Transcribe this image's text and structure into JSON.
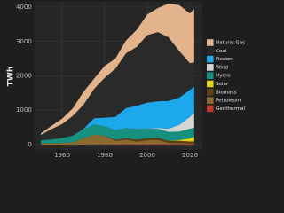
{
  "chart_data": {
    "type": "stacked-area",
    "y_label": "TWh",
    "x": [
      1950,
      1955,
      1960,
      1965,
      1970,
      1975,
      1980,
      1985,
      1990,
      1995,
      2000,
      2005,
      2010,
      2015,
      2020,
      2022
    ],
    "xlim": [
      1947,
      2026
    ],
    "xticks": [
      1960,
      1980,
      2000,
      2020
    ],
    "ylim": [
      -150,
      4150
    ],
    "yticks": [
      0,
      1000,
      2000,
      3000,
      4000
    ],
    "grid": true,
    "legend": "right",
    "series": [
      {
        "name": "Geothermal",
        "color": "#c0392b",
        "values": [
          0,
          0,
          0,
          0.2,
          0.5,
          3,
          5,
          11,
          16,
          14,
          14,
          15,
          15,
          16,
          16,
          16
        ]
      },
      {
        "name": "Petroleum",
        "color": "#8a6a2e",
        "values": [
          34,
          37,
          48,
          65,
          184,
          289,
          246,
          100,
          127,
          75,
          111,
          122,
          37,
          28,
          17,
          23
        ]
      },
      {
        "name": "Biomass",
        "color": "#5e4016",
        "values": [
          0,
          0,
          0,
          0,
          0,
          2,
          5,
          30,
          45,
          58,
          60,
          55,
          57,
          64,
          56,
          53
        ]
      },
      {
        "name": "Solar",
        "color": "#e3d21a",
        "values": [
          0,
          0,
          0,
          0,
          0,
          0,
          0,
          0,
          0.4,
          0.5,
          0.5,
          0.6,
          1,
          25,
          90,
          144
        ]
      },
      {
        "name": "Hydro",
        "color": "#16907f",
        "values": [
          96,
          113,
          146,
          194,
          248,
          300,
          276,
          281,
          293,
          310,
          276,
          270,
          260,
          249,
          285,
          255
        ]
      },
      {
        "name": "Wind",
        "color": "#d6d6d6",
        "values": [
          0,
          0,
          0,
          0,
          0,
          0,
          0,
          0,
          3,
          3,
          6,
          18,
          95,
          191,
          338,
          434
        ]
      },
      {
        "name": "Fission",
        "color": "#1ea8ec",
        "values": [
          0,
          0,
          0.5,
          4,
          22,
          173,
          251,
          384,
          577,
          673,
          754,
          782,
          807,
          797,
          790,
          772
        ]
      },
      {
        "name": "Coal",
        "color": "#2a2a2a",
        "values": [
          155,
          301,
          403,
          571,
          704,
          853,
          1162,
          1402,
          1594,
          1709,
          1966,
          2013,
          1847,
          1352,
          775,
          700
        ]
      },
      {
        "name": "Natural Gas",
        "color": "#e3b48c",
        "values": [
          45,
          95,
          158,
          222,
          373,
          300,
          346,
          292,
          373,
          496,
          601,
          700,
          988,
          1335,
          1450,
          1550
        ]
      }
    ]
  }
}
